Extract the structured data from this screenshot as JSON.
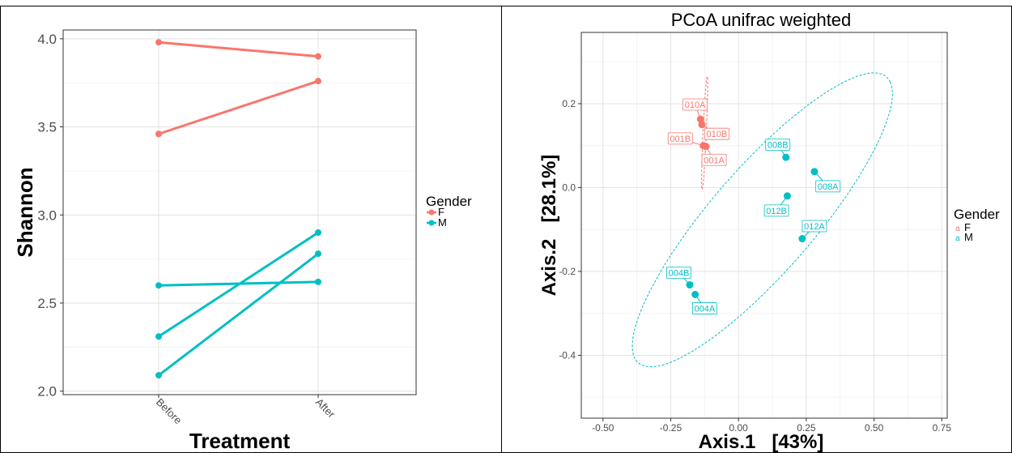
{
  "chart_data": [
    {
      "type": "line",
      "title": "",
      "xlabel": "Treatment",
      "ylabel": "Shannon",
      "categories": [
        "Before",
        "After"
      ],
      "ylim": [
        1.98,
        4.05
      ],
      "yticks": [
        2.0,
        2.5,
        3.0,
        3.5,
        4.0
      ],
      "ytick_labels": [
        "2.0",
        "2.5",
        "3.0",
        "3.5",
        "4.0"
      ],
      "grid": true,
      "legend": {
        "title": "Gender",
        "placement": "right",
        "entries": [
          {
            "label": "F",
            "color": "#F8766D"
          },
          {
            "label": "M",
            "color": "#00BFC4"
          }
        ]
      },
      "series": [
        {
          "group": "F",
          "color": "#F8766D",
          "values": [
            3.98,
            3.9
          ]
        },
        {
          "group": "F",
          "color": "#F8766D",
          "values": [
            3.46,
            3.76
          ]
        },
        {
          "group": "M",
          "color": "#00BFC4",
          "values": [
            2.6,
            2.62
          ]
        },
        {
          "group": "M",
          "color": "#00BFC4",
          "values": [
            2.31,
            2.9
          ]
        },
        {
          "group": "M",
          "color": "#00BFC4",
          "values": [
            2.09,
            2.78
          ]
        }
      ]
    },
    {
      "type": "scatter",
      "title": "PCoA unifrac weighted",
      "xlabel": "Axis.1   [43%]",
      "ylabel": "Axis.2   [28.1%]",
      "xlim": [
        -0.58,
        0.77
      ],
      "ylim": [
        -0.55,
        0.37
      ],
      "xticks": [
        -0.5,
        -0.25,
        0.0,
        0.25,
        0.5,
        0.75
      ],
      "xtick_labels": [
        "-0.50",
        "-0.25",
        "0.00",
        "0.25",
        "0.50",
        "0.75"
      ],
      "yticks": [
        -0.4,
        -0.2,
        0.0,
        0.2
      ],
      "ytick_labels": [
        "-0.4",
        "-0.2",
        "0.0",
        "0.2"
      ],
      "grid": true,
      "legend": {
        "title": "Gender",
        "placement": "right",
        "entries": [
          {
            "label": "F",
            "color": "#F8766D"
          },
          {
            "label": "M",
            "color": "#00BFC4"
          }
        ]
      },
      "points": [
        {
          "label": "010A",
          "group": "F",
          "x": -0.14,
          "y": 0.163,
          "lx": -0.16,
          "ly": 0.198
        },
        {
          "label": "010B",
          "group": "F",
          "x": -0.135,
          "y": 0.15,
          "lx": -0.08,
          "ly": 0.128
        },
        {
          "label": "001B",
          "group": "F",
          "x": -0.13,
          "y": 0.1,
          "lx": -0.215,
          "ly": 0.117
        },
        {
          "label": "001A",
          "group": "F",
          "x": -0.12,
          "y": 0.098,
          "lx": -0.09,
          "ly": 0.066
        },
        {
          "label": "008B",
          "group": "M",
          "x": 0.175,
          "y": 0.072,
          "lx": 0.145,
          "ly": 0.102
        },
        {
          "label": "008A",
          "group": "M",
          "x": 0.28,
          "y": 0.038,
          "lx": 0.33,
          "ly": 0.003
        },
        {
          "label": "012B",
          "group": "M",
          "x": 0.18,
          "y": -0.02,
          "lx": 0.14,
          "ly": -0.055
        },
        {
          "label": "012A",
          "group": "M",
          "x": 0.235,
          "y": -0.122,
          "lx": 0.28,
          "ly": -0.092
        },
        {
          "label": "004B",
          "group": "M",
          "x": -0.18,
          "y": -0.232,
          "lx": -0.22,
          "ly": -0.203
        },
        {
          "label": "004A",
          "group": "M",
          "x": -0.16,
          "y": -0.255,
          "lx": -0.125,
          "ly": -0.288
        }
      ],
      "ellipses": [
        {
          "group": "F",
          "color": "#F8766D",
          "cx": -0.125,
          "cy": 0.13,
          "rx_major": 0.135,
          "rx_minor": 0.006,
          "angle_deg": 86
        },
        {
          "group": "M",
          "color": "#00BFC4",
          "cx": 0.088,
          "cy": -0.077,
          "rx_major": 0.575,
          "rx_minor": 0.15,
          "angle_deg": 34.8
        }
      ]
    }
  ]
}
